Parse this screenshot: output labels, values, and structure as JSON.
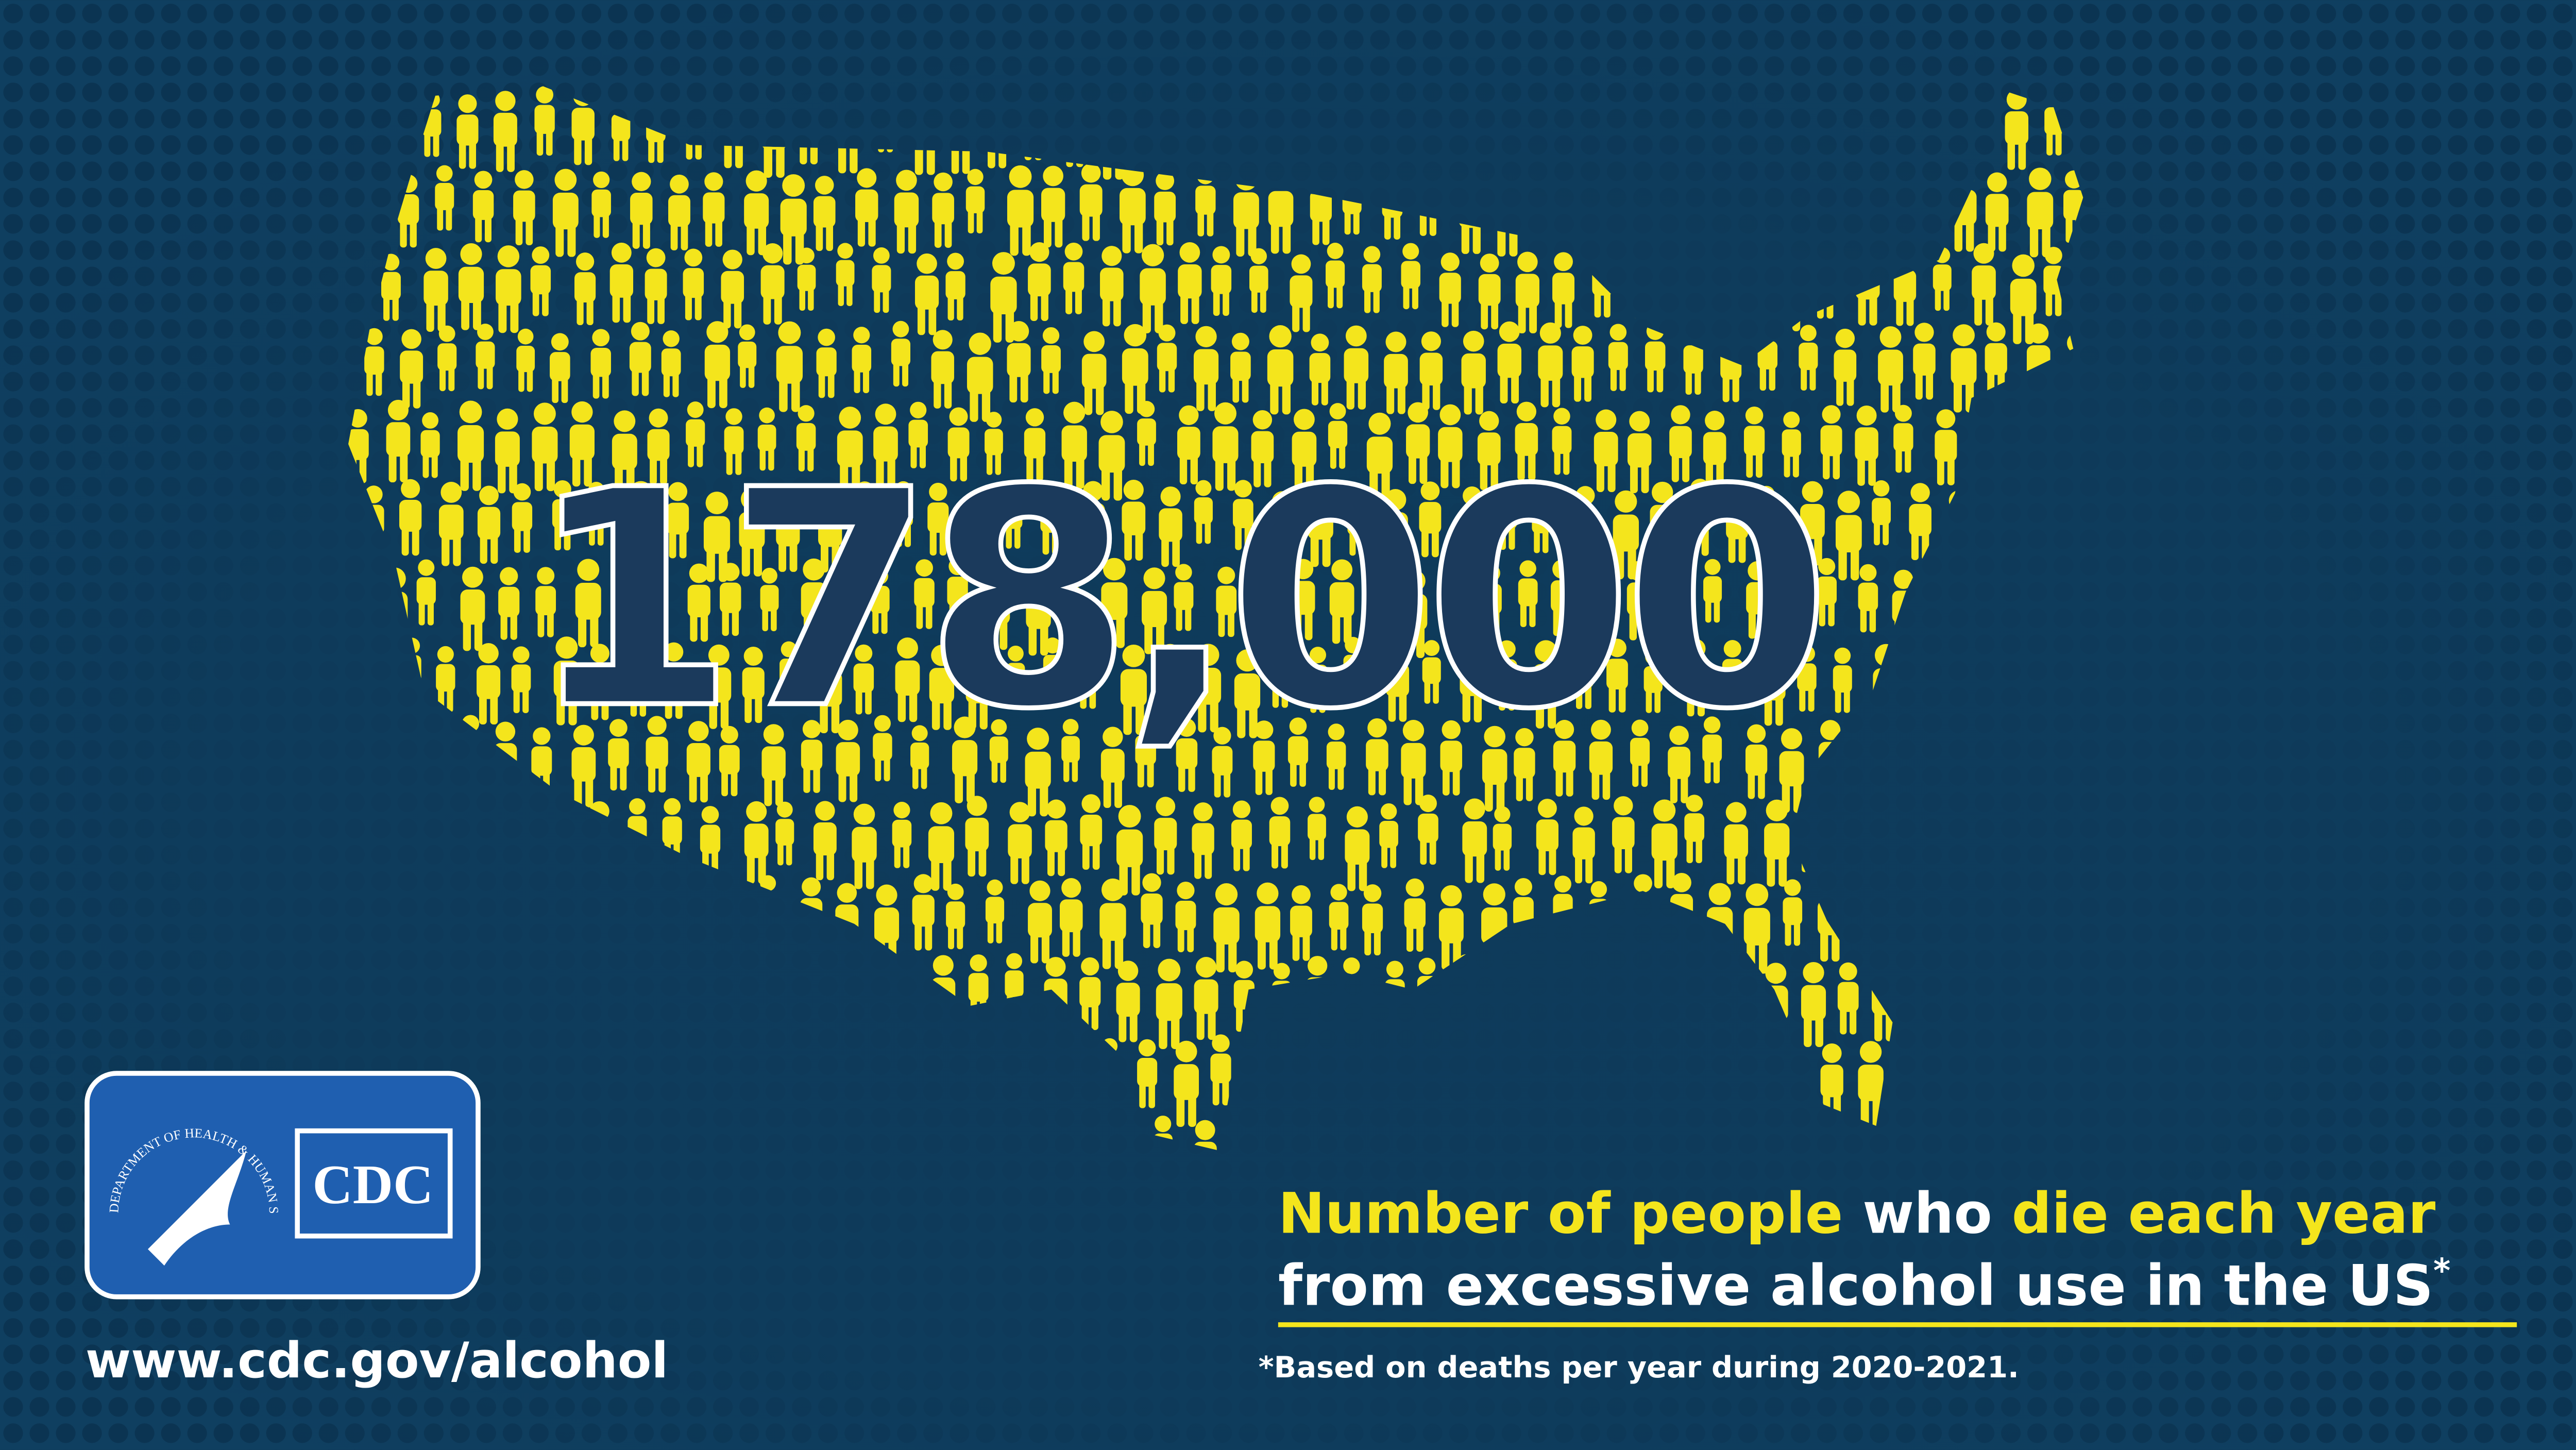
{
  "headline_number": "178,000",
  "caption": {
    "part1": "Number of people",
    "part2": "who",
    "part3": "die each year",
    "part4": "from excessive alcohol use in the US",
    "footnote_marker": "*"
  },
  "footnote": "*Based on deaths per year during 2020-2021.",
  "url": "www.cdc.gov/alcohol",
  "logo": {
    "hhs_text": "DEPARTMENT OF HEALTH & HUMAN SERVICES USA",
    "cdc_text": "CDC"
  }
}
